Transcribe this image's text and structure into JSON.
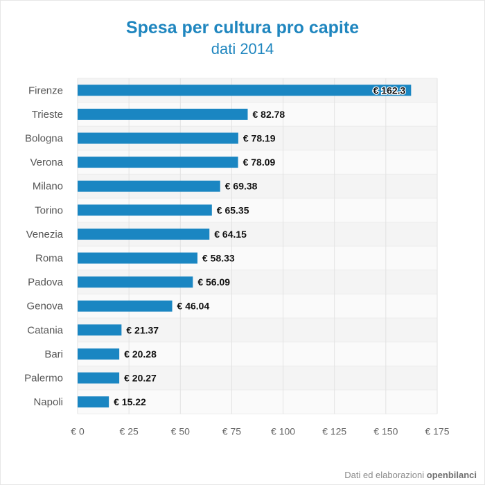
{
  "page": {
    "title": "Spesa per cultura pro capite",
    "subtitle": "dati 2014",
    "footer_text": "Dati ed elaborazioni",
    "footer_brand": "openbilanci"
  },
  "colors": {
    "bar": "#1a86c2",
    "title": "#1f86bf",
    "band_odd": "#f4f4f4",
    "band_even": "#fafafa",
    "grid": "#e2e2e2"
  },
  "chart_data": {
    "type": "bar",
    "orientation": "horizontal",
    "title": "Spesa per cultura pro capite",
    "subtitle": "dati 2014",
    "categories": [
      "Firenze",
      "Trieste",
      "Bologna",
      "Verona",
      "Milano",
      "Torino",
      "Venezia",
      "Roma",
      "Padova",
      "Genova",
      "Catania",
      "Bari",
      "Palermo",
      "Napoli"
    ],
    "values": [
      162.3,
      82.78,
      78.19,
      78.09,
      69.38,
      65.35,
      64.15,
      58.33,
      56.09,
      46.04,
      21.37,
      20.28,
      20.27,
      15.22
    ],
    "value_labels": [
      "€ 162.3",
      "€ 82.78",
      "€ 78.19",
      "€ 78.09",
      "€ 69.38",
      "€ 65.35",
      "€ 64.15",
      "€ 58.33",
      "€ 56.09",
      "€ 46.04",
      "€ 21.37",
      "€ 20.28",
      "€ 20.27",
      "€ 15.22"
    ],
    "x_ticks": [
      0,
      25,
      50,
      75,
      100,
      125,
      150,
      175
    ],
    "x_tick_labels": [
      "€ 0",
      "€ 25",
      "€ 50",
      "€ 75",
      "€ 100",
      "€ 125",
      "€ 150",
      "€ 175"
    ],
    "xlim": [
      0,
      175
    ],
    "grid": true,
    "legend": "none"
  }
}
